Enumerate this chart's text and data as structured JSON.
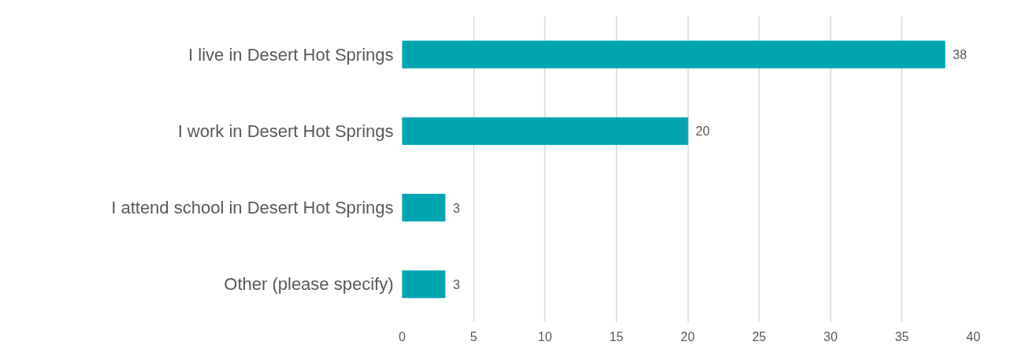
{
  "chart_data": {
    "type": "bar",
    "orientation": "horizontal",
    "categories": [
      "I live in Desert Hot Springs",
      "I work in Desert Hot Springs",
      "I attend school in Desert Hot Springs",
      "Other (please specify)"
    ],
    "values": [
      38,
      20,
      3,
      3
    ],
    "color": "#00a5b0",
    "xlim": [
      0,
      40
    ],
    "xticks": [
      0,
      5,
      10,
      15,
      20,
      25,
      30,
      35,
      40
    ],
    "grid": "x",
    "data_labels": true
  }
}
